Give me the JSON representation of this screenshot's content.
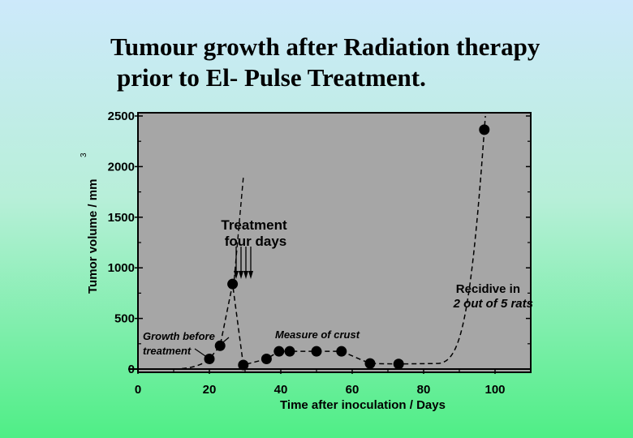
{
  "title_line1": "Tumour growth after Radiation therapy",
  "title_line2": "prior to El- Pulse Treatment.",
  "chart_data": {
    "type": "scatter",
    "xlabel": "Time after inoculation / Days",
    "ylabel": "Tumor volume / mm",
    "ylabel_superscript": "3",
    "xlim": [
      0,
      110
    ],
    "ylim": [
      0,
      2500
    ],
    "xticks": [
      "0",
      "20",
      "40",
      "60",
      "80",
      "100"
    ],
    "yticks": [
      "0",
      "500",
      "1000",
      "1500",
      "2000",
      "2500"
    ],
    "series": [
      {
        "points": [
          {
            "x": 20,
            "y": 100
          },
          {
            "x": 23,
            "y": 230
          },
          {
            "x": 26.5,
            "y": 840
          },
          {
            "x": 29.5,
            "y": 40
          },
          {
            "x": 36,
            "y": 100
          },
          {
            "x": 39.5,
            "y": 175
          },
          {
            "x": 42.5,
            "y": 175
          },
          {
            "x": 50,
            "y": 175
          },
          {
            "x": 57,
            "y": 175
          },
          {
            "x": 65,
            "y": 55
          },
          {
            "x": 73,
            "y": 50
          },
          {
            "x": 97,
            "y": 2365
          }
        ]
      }
    ],
    "annotations": {
      "treatment_line1": "Treatment",
      "treatment_line2": "four days",
      "growth_line1": "Growth before",
      "growth_line2": "treatment",
      "crust": "Measure of crust",
      "recidive_line1": "Recidive in",
      "recidive_line2": "2 out of 5 rats"
    },
    "plot_background": "#a6a6a6",
    "grid": false
  }
}
